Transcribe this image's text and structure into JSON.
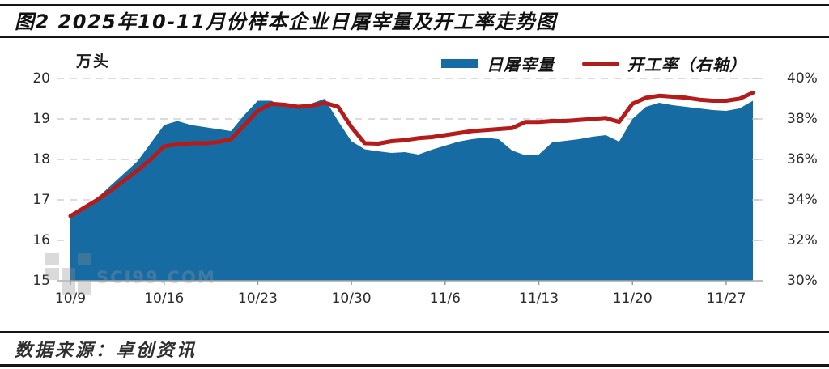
{
  "header": {
    "title": "图2  2025年10-11月份样本企业日屠宰量及开工率走势图"
  },
  "chart": {
    "unit_label": "万头"
  },
  "watermark": {
    "text": "SCI99.COM"
  },
  "footer": {
    "source": "数据来源：卓创资讯"
  },
  "chart_data": {
    "type": "area+line",
    "title": "2025年10-11月份样本企业日屠宰量及开工率走势图",
    "x": [
      "10/9",
      "10/10",
      "10/11",
      "10/12",
      "10/13",
      "10/14",
      "10/15",
      "10/16",
      "10/17",
      "10/18",
      "10/19",
      "10/20",
      "10/21",
      "10/22",
      "10/23",
      "10/24",
      "10/25",
      "10/26",
      "10/27",
      "10/28",
      "10/29",
      "10/30",
      "10/31",
      "11/1",
      "11/2",
      "11/3",
      "11/4",
      "11/5",
      "11/6",
      "11/7",
      "11/8",
      "11/9",
      "11/10",
      "11/11",
      "11/12",
      "11/13",
      "11/14",
      "11/15",
      "11/16",
      "11/17",
      "11/18",
      "11/19",
      "11/20",
      "11/21",
      "11/22",
      "11/23",
      "11/24",
      "11/25",
      "11/26",
      "11/27",
      "11/28",
      "11/29"
    ],
    "x_ticks": [
      {
        "label": "10/9",
        "index": 0
      },
      {
        "label": "10/16",
        "index": 7
      },
      {
        "label": "10/23",
        "index": 14
      },
      {
        "label": "10/30",
        "index": 21
      },
      {
        "label": "11/6",
        "index": 28
      },
      {
        "label": "11/13",
        "index": 35
      },
      {
        "label": "11/20",
        "index": 42
      },
      {
        "label": "11/27",
        "index": 49
      }
    ],
    "series": [
      {
        "key": "slaughter",
        "name": "日屠宰量",
        "type": "area",
        "axis": "left",
        "color": "#176BA3",
        "values": [
          16.55,
          16.8,
          17.05,
          17.35,
          17.65,
          17.95,
          18.4,
          18.85,
          18.95,
          18.85,
          18.8,
          18.75,
          18.7,
          19.1,
          19.45,
          19.45,
          19.3,
          19.28,
          19.38,
          19.5,
          18.95,
          18.45,
          18.25,
          18.2,
          18.16,
          18.18,
          18.12,
          18.24,
          18.34,
          18.44,
          18.5,
          18.54,
          18.5,
          18.22,
          18.1,
          18.12,
          18.42,
          18.46,
          18.5,
          18.56,
          18.6,
          18.44,
          19.0,
          19.3,
          19.4,
          19.34,
          19.3,
          19.26,
          19.22,
          19.2,
          19.26,
          19.45
        ]
      },
      {
        "key": "operating-rate",
        "name": "开工率（右轴）",
        "type": "line",
        "axis": "right",
        "color": "#B41C1C",
        "values": [
          33.2,
          33.6,
          34.0,
          34.45,
          34.95,
          35.45,
          36.0,
          36.65,
          36.75,
          36.8,
          36.8,
          36.85,
          37.0,
          37.7,
          38.4,
          38.75,
          38.7,
          38.6,
          38.65,
          38.8,
          38.6,
          37.6,
          36.8,
          36.78,
          36.9,
          36.95,
          37.05,
          37.1,
          37.2,
          37.3,
          37.4,
          37.45,
          37.5,
          37.55,
          37.85,
          37.85,
          37.9,
          37.9,
          37.95,
          38.0,
          38.05,
          37.85,
          38.75,
          39.05,
          39.15,
          39.1,
          39.05,
          38.95,
          38.9,
          38.9,
          39.0,
          39.3
        ]
      }
    ],
    "left_axis": {
      "unit": "万头",
      "range": [
        15,
        20
      ],
      "ticks": [
        20,
        19,
        18,
        17,
        16,
        15
      ]
    },
    "right_axis": {
      "range": [
        30,
        40
      ],
      "ticks": [
        "40%",
        "38%",
        "36%",
        "34%",
        "32%",
        "30%"
      ],
      "tick_values": [
        40,
        38,
        36,
        34,
        32,
        30
      ]
    },
    "grid": "horizontal dashed, legend top-right"
  }
}
